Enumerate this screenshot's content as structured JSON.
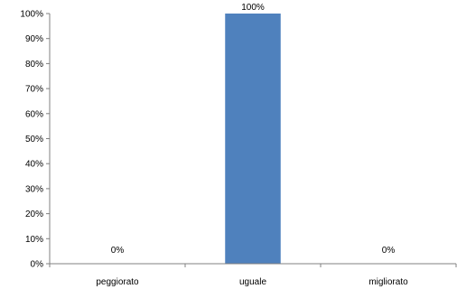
{
  "chart_data": {
    "type": "bar",
    "categories": [
      "peggiorato",
      "uguale",
      "migliorato"
    ],
    "values": [
      0,
      100,
      0
    ],
    "data_labels": [
      "0%",
      "100%",
      "0%"
    ],
    "y_tick_labels": [
      "0%",
      "10%",
      "20%",
      "30%",
      "40%",
      "50%",
      "60%",
      "70%",
      "80%",
      "90%",
      "100%"
    ],
    "ylim": [
      0,
      100
    ],
    "title": "",
    "xlabel": "",
    "ylabel": "",
    "grid": false,
    "legend": "none",
    "bar_color": "#4F81BD"
  }
}
